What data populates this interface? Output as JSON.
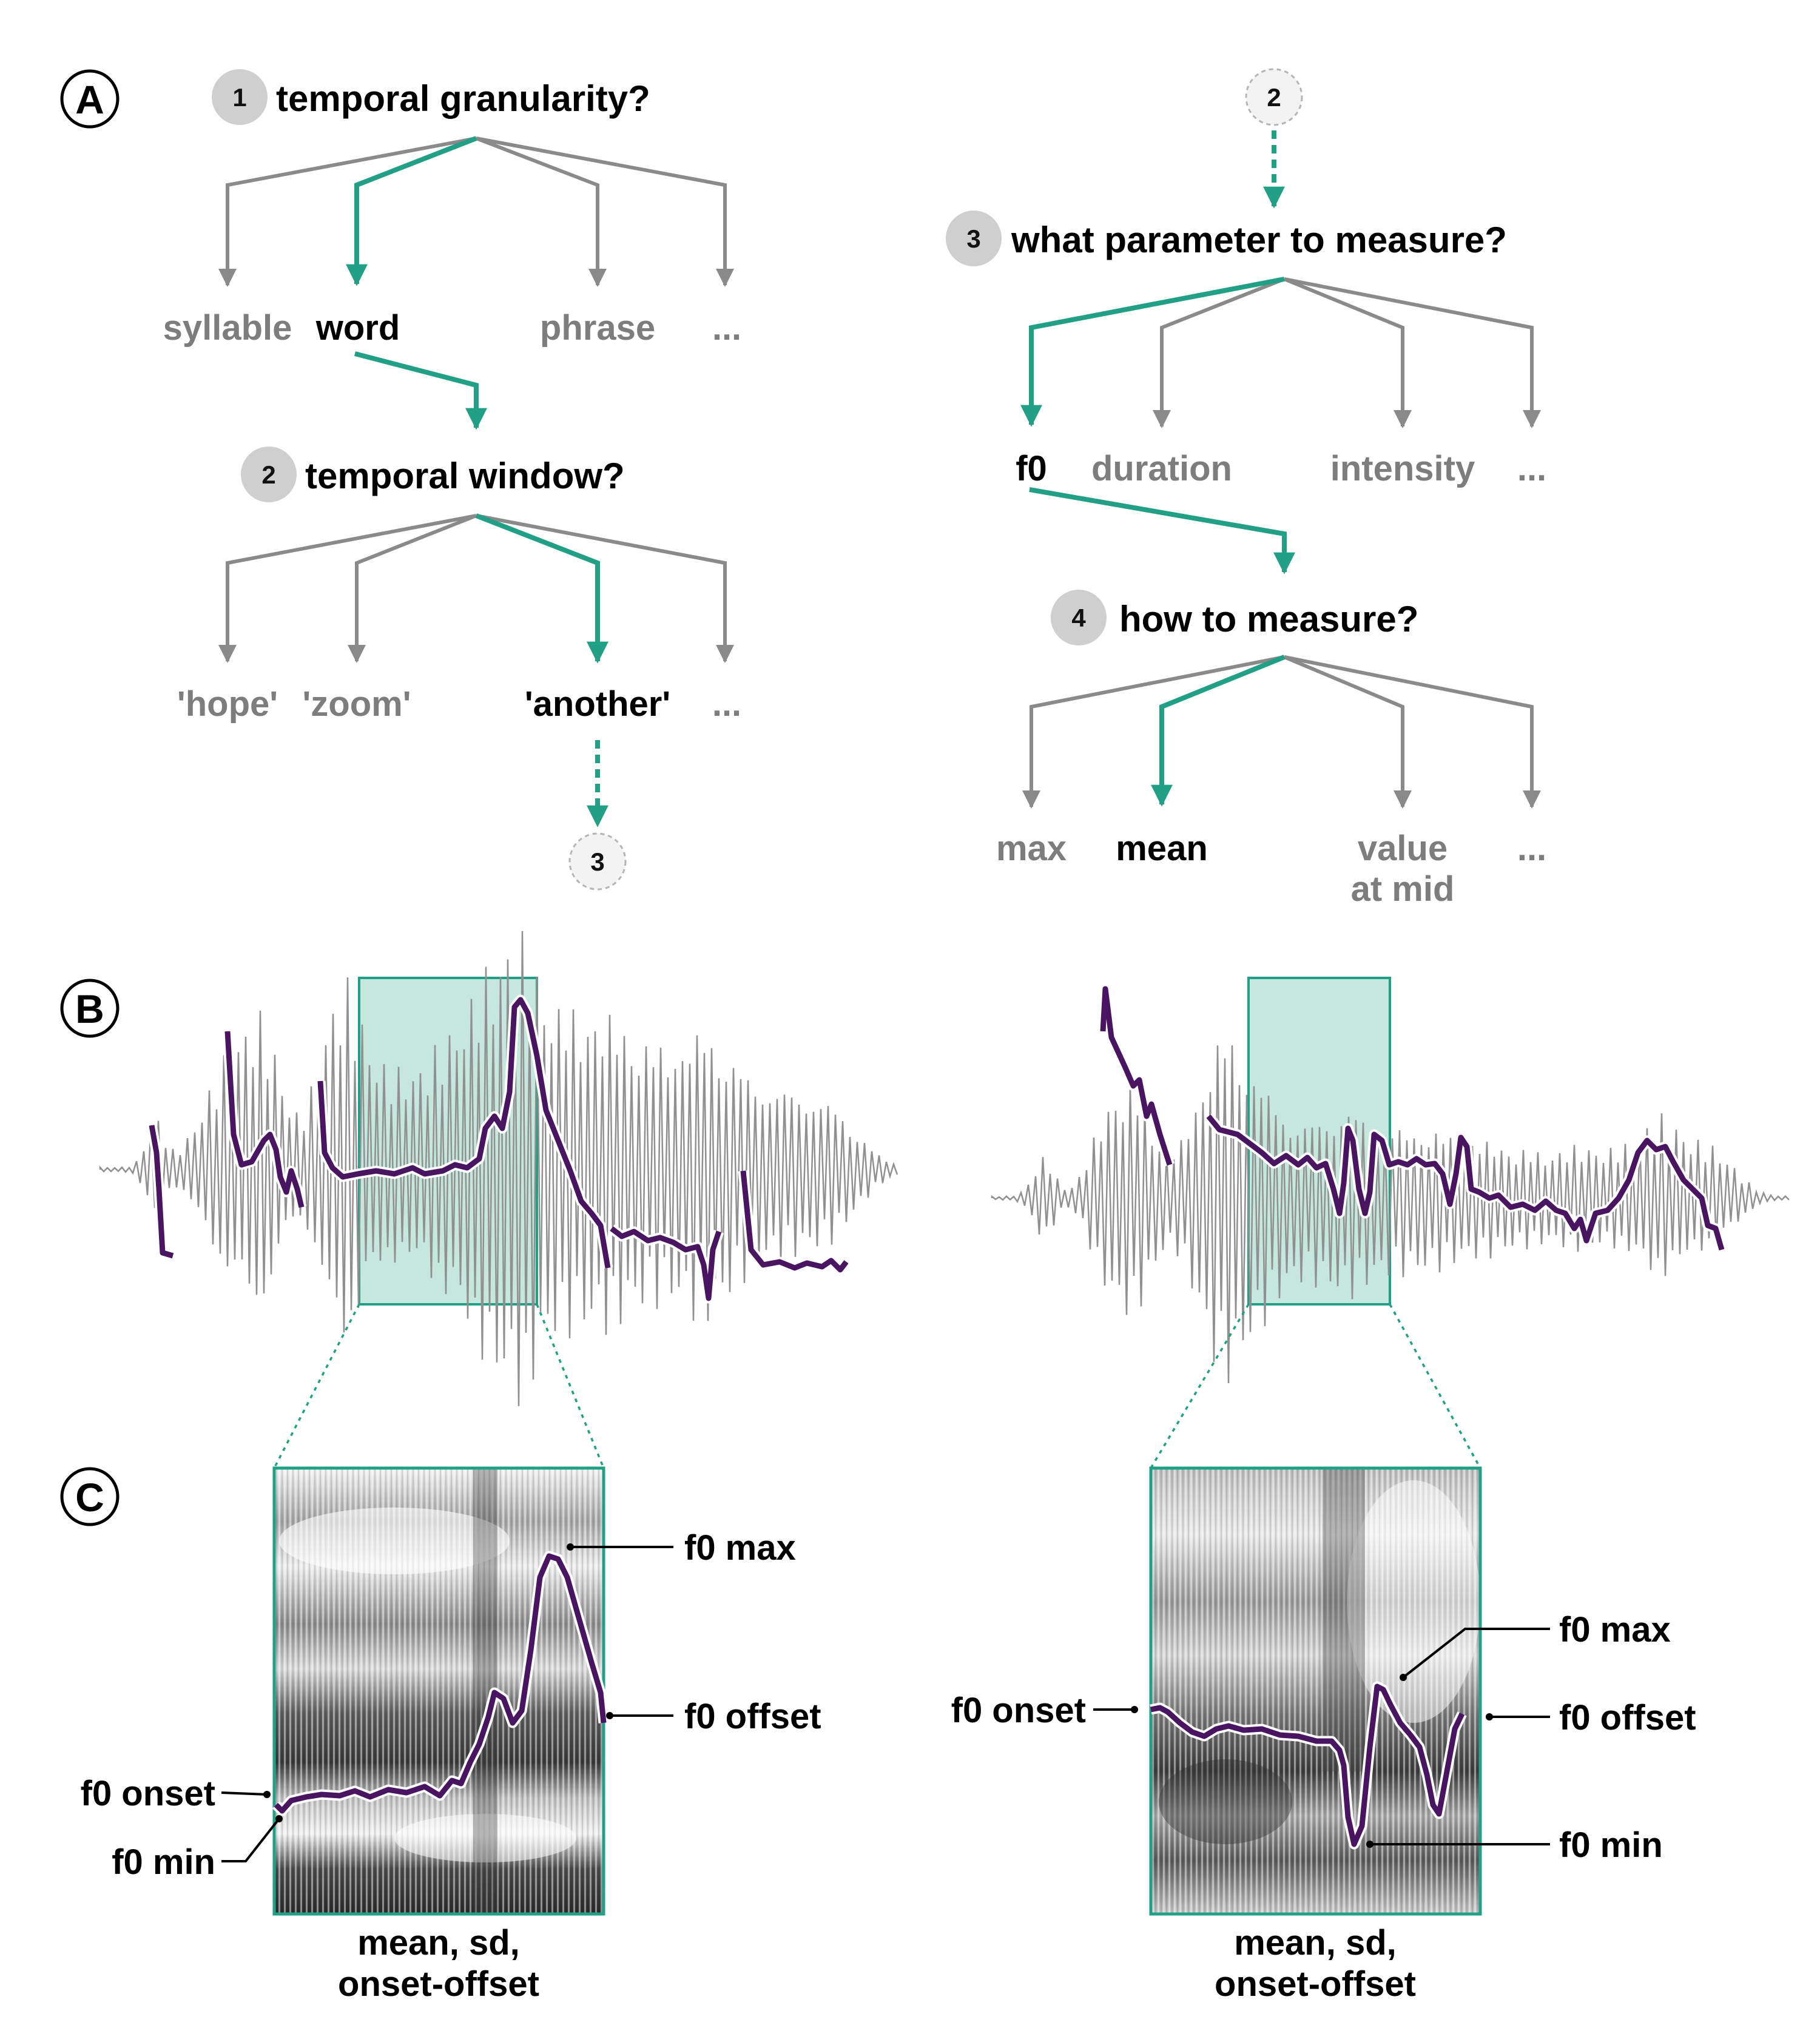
{
  "panels": {
    "a": "A",
    "b": "B",
    "c": "C"
  },
  "tree_left": {
    "q1": {
      "num": "1",
      "text": "temporal granularity?"
    },
    "q1_options": {
      "syllable": "syllable",
      "word": "word",
      "phrase": "phrase",
      "more": "..."
    },
    "q2": {
      "num": "2",
      "text": "temporal window?"
    },
    "q2_options": {
      "hope": "'hope'",
      "zoom": "'zoom'",
      "another": "'another'",
      "more": "..."
    },
    "next_node": "3"
  },
  "tree_right": {
    "prev_node": "2",
    "q3": {
      "num": "3",
      "text": "what parameter to measure?"
    },
    "q3_options": {
      "f0": "f0",
      "duration": "duration",
      "intensity": "intensity",
      "more": "..."
    },
    "q4": {
      "num": "4",
      "text": "how to measure?"
    },
    "q4_options": {
      "max": "max",
      "mean": "mean",
      "value_line1": "value",
      "value_line2": "at mid",
      "more": "..."
    }
  },
  "spectro_left": {
    "labels": {
      "f0_max": "f0 max",
      "f0_offset": "f0 offset",
      "f0_onset": "f0 onset",
      "f0_min": "f0 min"
    },
    "caption_line1": "mean, sd,",
    "caption_line2": "onset-offset"
  },
  "spectro_right": {
    "labels": {
      "f0_max": "f0 max",
      "f0_offset": "f0 offset",
      "f0_onset": "f0 onset",
      "f0_min": "f0 min"
    },
    "caption_line1": "mean, sd,",
    "caption_line2": "onset-offset"
  },
  "colors": {
    "accent": "#22a085",
    "f0_contour": "#4a1560",
    "inactive": "#8a8a8a",
    "highlight_fill": "#c5e7de"
  }
}
